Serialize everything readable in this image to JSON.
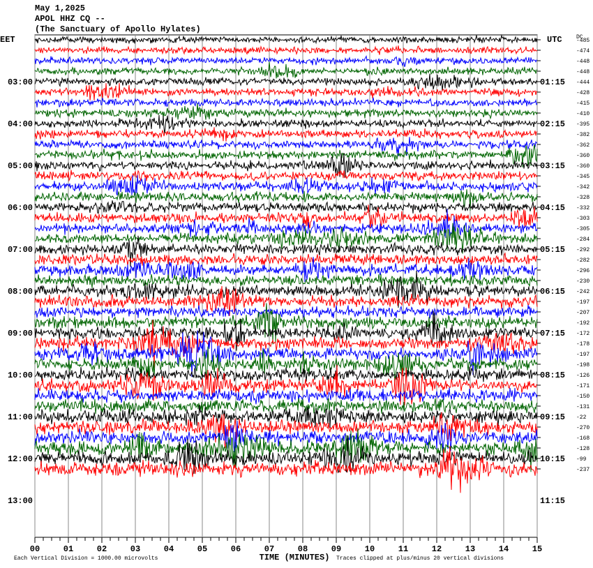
{
  "header": {
    "date": "May 1,2025",
    "station": "APOL HHZ CQ --",
    "site": "(The Sanctuary of Apollo Hylates)"
  },
  "left_label": "EET",
  "right_label": "UTC",
  "dc_label": "DC",
  "left_times": [
    "03:00",
    "04:00",
    "05:00",
    "06:00",
    "07:00",
    "08:00",
    "09:00",
    "10:00",
    "11:00",
    "12:00",
    "13:00"
  ],
  "right_times": [
    "01:15",
    "02:15",
    "03:15",
    "04:15",
    "05:15",
    "06:15",
    "07:15",
    "08:15",
    "09:15",
    "10:15",
    "11:15"
  ],
  "dc_offsets": [
    -485,
    -474,
    -448,
    -448,
    -444,
    -428,
    -415,
    -410,
    -395,
    -382,
    -362,
    -360,
    -360,
    -345,
    -342,
    -328,
    -332,
    -303,
    -305,
    -284,
    -292,
    -282,
    -296,
    -230,
    -242,
    -197,
    -207,
    -192,
    -172,
    -178,
    -197,
    -198,
    -126,
    -171,
    -150,
    -131,
    -22,
    -270,
    -168,
    -128,
    -99,
    -237
  ],
  "trace_colors": [
    "#000000",
    "#ff0000",
    "#0000ff",
    "#006400"
  ],
  "x_axis": {
    "label": "TIME (MINUTES)",
    "ticks": [
      "00",
      "01",
      "02",
      "03",
      "04",
      "05",
      "06",
      "07",
      "08",
      "09",
      "10",
      "11",
      "12",
      "13",
      "14",
      "15"
    ]
  },
  "footer": {
    "scale": "Each Vertical Division = 1000.00 microvolts",
    "clip": "Traces clipped at plus/minus 20 vertical divisions"
  }
}
